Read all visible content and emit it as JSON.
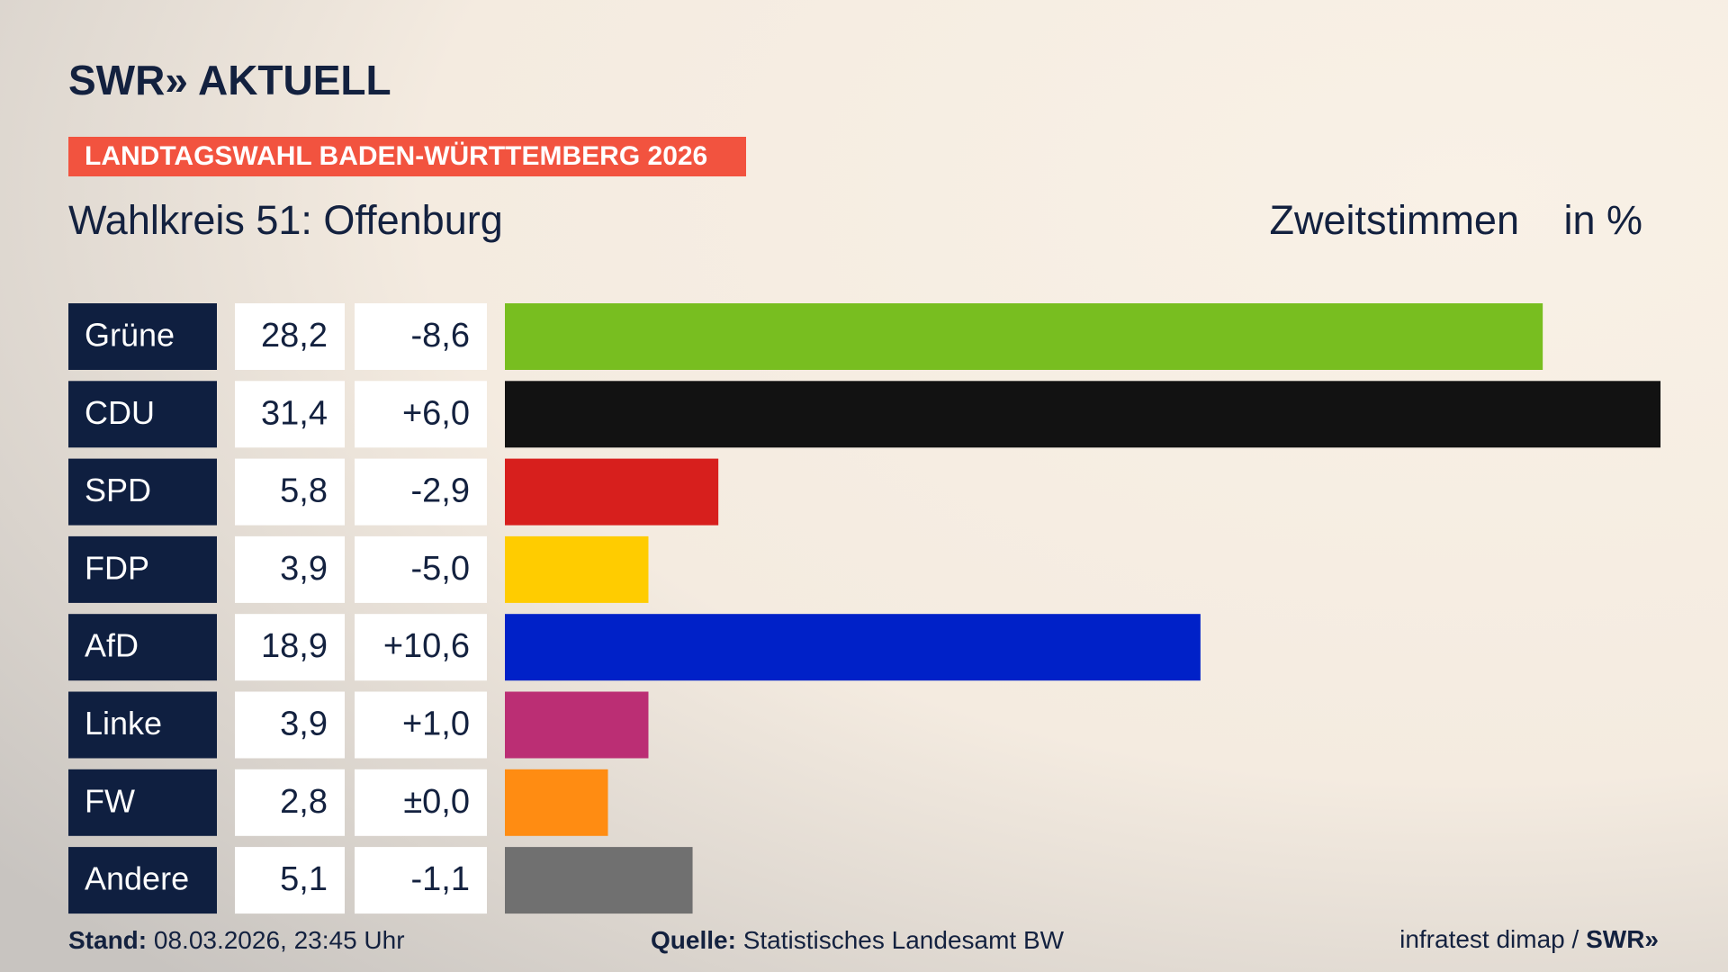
{
  "chart_data": {
    "type": "bar",
    "brand": "SWR» AKTUELL",
    "banner": "LANDTAGSWAHL BADEN-WÜRTTEMBERG 2026",
    "title": "Wahlkreis 51: Offenburg",
    "measure": "Zweitstimmen",
    "unit": "in %",
    "categories": [
      "Grüne",
      "CDU",
      "SPD",
      "FDP",
      "AfD",
      "Linke",
      "FW",
      "Andere"
    ],
    "values": [
      28.2,
      31.4,
      5.8,
      3.9,
      18.9,
      3.9,
      2.8,
      5.1
    ],
    "value_labels": [
      "28,2",
      "31,4",
      "5,8",
      "3,9",
      "18,9",
      "3,9",
      "2,8",
      "5,1"
    ],
    "changes": [
      {
        "value": -8.6,
        "label": "-8,6"
      },
      {
        "value": 6.0,
        "label": "+6,0"
      },
      {
        "value": -2.9,
        "label": "-2,9"
      },
      {
        "value": -5.0,
        "label": "-5,0"
      },
      {
        "value": 10.6,
        "label": "+10,6"
      },
      {
        "value": 1.0,
        "label": "+1,0"
      },
      {
        "value": 0.0,
        "label": "±0,0"
      },
      {
        "value": -1.1,
        "label": "-1,1"
      }
    ],
    "colors": [
      "#78be20",
      "#121212",
      "#d71f1d",
      "#ffcc00",
      "#0021c8",
      "#bb2e74",
      "#ff8c12",
      "#707070"
    ],
    "footer": {
      "stand_label": "Stand:",
      "stand": "08.03.2026, 23:45 Uhr",
      "source_label": "Quelle:",
      "source": "Statistisches Landesamt BW",
      "credit": "infratest dimap /",
      "credit_logo": "SWR»"
    }
  }
}
